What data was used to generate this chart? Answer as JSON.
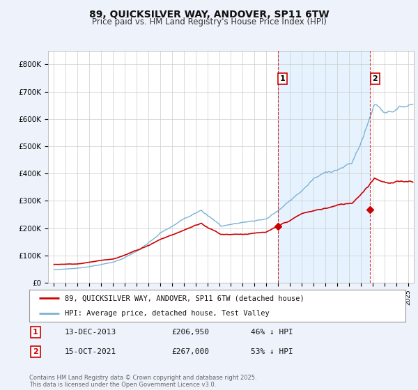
{
  "title": "89, QUICKSILVER WAY, ANDOVER, SP11 6TW",
  "subtitle": "Price paid vs. HM Land Registry's House Price Index (HPI)",
  "title_fontsize": 10,
  "subtitle_fontsize": 8.5,
  "ylim": [
    0,
    850000
  ],
  "yticks": [
    0,
    100000,
    200000,
    300000,
    400000,
    500000,
    600000,
    700000,
    800000
  ],
  "ytick_labels": [
    "£0",
    "£100K",
    "£200K",
    "£300K",
    "£400K",
    "£500K",
    "£600K",
    "£700K",
    "£800K"
  ],
  "background_color": "#eef2fa",
  "plot_bg_color": "#ffffff",
  "hpi_color": "#7ab3d4",
  "price_color": "#cc0000",
  "shade_color": "#dceeff",
  "sale1_date": 2013.958,
  "sale1_price": 206950,
  "sale2_date": 2021.792,
  "sale2_price": 267000,
  "legend_line1": "89, QUICKSILVER WAY, ANDOVER, SP11 6TW (detached house)",
  "legend_line2": "HPI: Average price, detached house, Test Valley",
  "table_row1": [
    "1",
    "13-DEC-2013",
    "£206,950",
    "46% ↓ HPI"
  ],
  "table_row2": [
    "2",
    "15-OCT-2021",
    "£267,000",
    "53% ↓ HPI"
  ],
  "footnote": "Contains HM Land Registry data © Crown copyright and database right 2025.\nThis data is licensed under the Open Government Licence v3.0.",
  "xmin": 1994.5,
  "xmax": 2025.5
}
